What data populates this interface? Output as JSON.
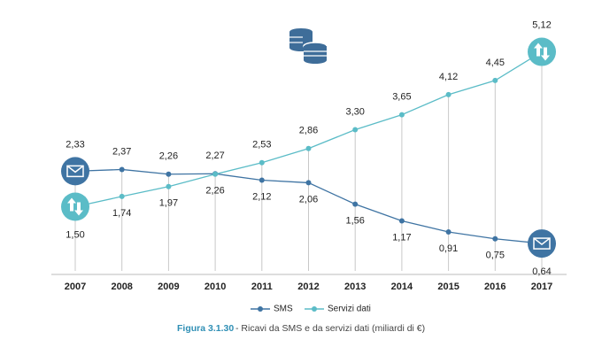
{
  "chart_data": {
    "type": "line",
    "categories": [
      "2007",
      "2008",
      "2009",
      "2010",
      "2011",
      "2012",
      "2013",
      "2014",
      "2015",
      "2016",
      "2017"
    ],
    "series": [
      {
        "name": "SMS",
        "color": "#3f74a3",
        "values": [
          2.33,
          2.37,
          2.26,
          2.27,
          2.12,
          2.06,
          1.56,
          1.17,
          0.91,
          0.75,
          0.64
        ],
        "value_labels": [
          "2,33",
          "2,37",
          "2,26",
          "2,27",
          "2,12",
          "2,06",
          "1,56",
          "1,17",
          "0,91",
          "0,75",
          "0,64"
        ]
      },
      {
        "name": "Servizi dati",
        "color": "#5bbcc7",
        "values": [
          1.5,
          1.74,
          1.97,
          2.26,
          2.53,
          2.86,
          3.3,
          3.65,
          4.12,
          4.45,
          5.12
        ],
        "value_labels": [
          "1,50",
          "1,74",
          "1,97",
          "2,26",
          "2,53",
          "2,86",
          "3,30",
          "3,65",
          "4,12",
          "4,45",
          "5,12"
        ]
      }
    ],
    "ylim": [
      0,
      6
    ],
    "caption_label": "Figura 3.1.30",
    "caption": "- Ricavi da SMS e da servizi dati (miliardi di €)"
  }
}
